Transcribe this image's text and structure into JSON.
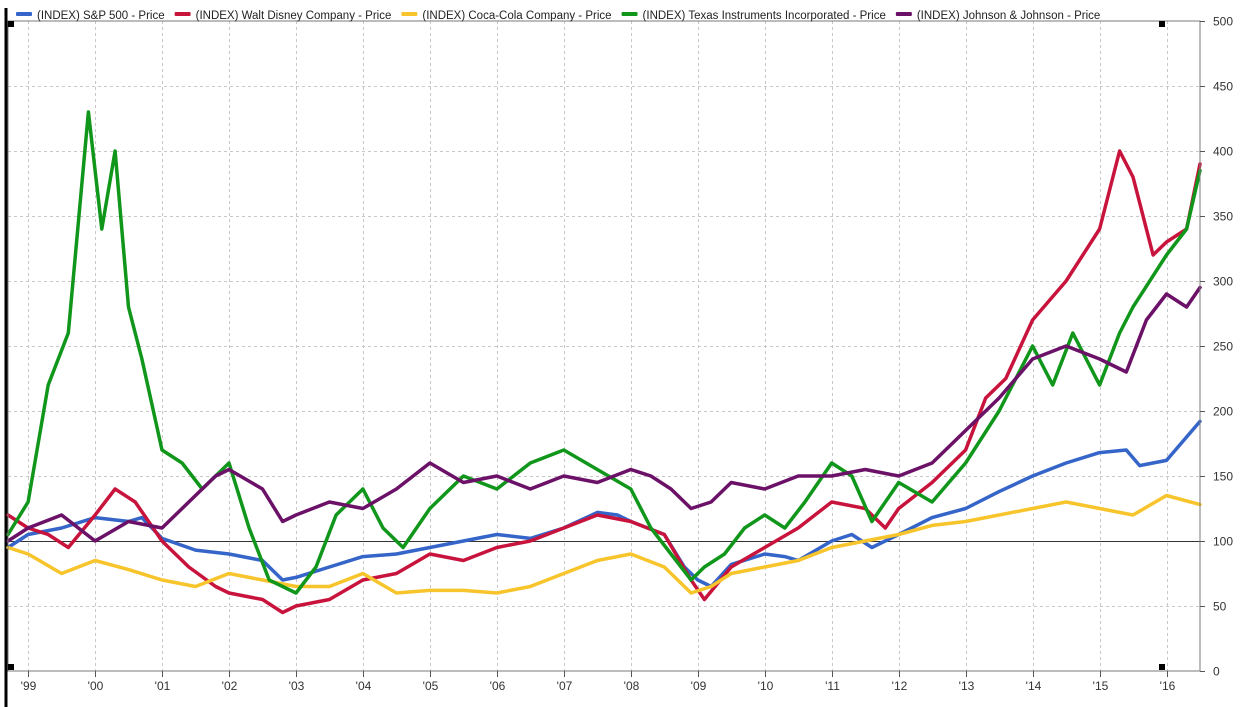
{
  "chart_data": {
    "type": "line",
    "title": "",
    "xlabel": "",
    "ylabel": "",
    "x_range": [
      1998.7,
      2016.5
    ],
    "x_ticks": [
      {
        "x": 1999,
        "label": "'99"
      },
      {
        "x": 2000,
        "label": "'00"
      },
      {
        "x": 2001,
        "label": "'01"
      },
      {
        "x": 2002,
        "label": "'02"
      },
      {
        "x": 2003,
        "label": "'03"
      },
      {
        "x": 2004,
        "label": "'04"
      },
      {
        "x": 2005,
        "label": "'05"
      },
      {
        "x": 2006,
        "label": "'06"
      },
      {
        "x": 2007,
        "label": "'07"
      },
      {
        "x": 2008,
        "label": "'08"
      },
      {
        "x": 2009,
        "label": "'09"
      },
      {
        "x": 2010,
        "label": "'10"
      },
      {
        "x": 2011,
        "label": "'11"
      },
      {
        "x": 2012,
        "label": "'12"
      },
      {
        "x": 2013,
        "label": "'13"
      },
      {
        "x": 2014,
        "label": "'14"
      },
      {
        "x": 2015,
        "label": "'15"
      },
      {
        "x": 2016,
        "label": "'16"
      }
    ],
    "ylim": [
      0,
      500
    ],
    "y_ticks": [
      0,
      50,
      100,
      150,
      200,
      250,
      300,
      350,
      400,
      450,
      500
    ],
    "y_axis_side": "right",
    "baseline": 100,
    "grid": true,
    "legend_placement": "top",
    "series": [
      {
        "name": "(INDEX) S&P 500 - Price",
        "color": "#3565c8",
        "x": [
          1998.7,
          1999.0,
          1999.5,
          2000.0,
          2000.5,
          2000.7,
          2001.0,
          2001.5,
          2002.0,
          2002.5,
          2002.8,
          2003.0,
          2003.5,
          2004.0,
          2004.5,
          2005.0,
          2005.5,
          2006.0,
          2006.5,
          2007.0,
          2007.5,
          2007.8,
          2008.0,
          2008.5,
          2008.8,
          2009.0,
          2009.2,
          2009.5,
          2010.0,
          2010.3,
          2010.5,
          2011.0,
          2011.3,
          2011.6,
          2012.0,
          2012.5,
          2013.0,
          2013.5,
          2014.0,
          2014.5,
          2015.0,
          2015.4,
          2015.6,
          2016.0,
          2016.3,
          2016.5
        ],
        "y": [
          95,
          105,
          110,
          118,
          115,
          118,
          102,
          93,
          90,
          85,
          70,
          72,
          80,
          88,
          90,
          95,
          100,
          105,
          102,
          110,
          122,
          120,
          115,
          105,
          80,
          70,
          65,
          82,
          90,
          88,
          85,
          100,
          105,
          95,
          105,
          118,
          125,
          138,
          150,
          160,
          168,
          170,
          158,
          162,
          180,
          192
        ]
      },
      {
        "name": "(INDEX) Walt Disney Company - Price",
        "color": "#c8143c",
        "x": [
          1998.7,
          1999.0,
          1999.3,
          1999.6,
          2000.0,
          2000.3,
          2000.6,
          2001.0,
          2001.4,
          2001.8,
          2002.0,
          2002.5,
          2002.8,
          2003.0,
          2003.5,
          2004.0,
          2004.5,
          2005.0,
          2005.5,
          2006.0,
          2006.5,
          2007.0,
          2007.5,
          2008.0,
          2008.5,
          2008.9,
          2009.1,
          2009.5,
          2010.0,
          2010.5,
          2011.0,
          2011.5,
          2011.8,
          2012.0,
          2012.5,
          2013.0,
          2013.3,
          2013.6,
          2014.0,
          2014.5,
          2015.0,
          2015.3,
          2015.5,
          2015.8,
          2016.0,
          2016.3,
          2016.5
        ],
        "y": [
          120,
          110,
          105,
          95,
          120,
          140,
          130,
          100,
          80,
          65,
          60,
          55,
          45,
          50,
          55,
          70,
          75,
          90,
          85,
          95,
          100,
          110,
          120,
          115,
          105,
          70,
          55,
          80,
          95,
          110,
          130,
          125,
          110,
          125,
          145,
          170,
          210,
          225,
          270,
          300,
          340,
          400,
          380,
          320,
          330,
          340,
          390
        ]
      },
      {
        "name": "(INDEX) Coca-Cola Company - Price",
        "color": "#f7c52b",
        "x": [
          1998.7,
          1999.0,
          1999.5,
          2000.0,
          2000.5,
          2001.0,
          2001.5,
          2002.0,
          2002.5,
          2003.0,
          2003.5,
          2004.0,
          2004.5,
          2005.0,
          2005.5,
          2006.0,
          2006.5,
          2007.0,
          2007.5,
          2008.0,
          2008.5,
          2008.9,
          2009.2,
          2009.5,
          2010.0,
          2010.5,
          2011.0,
          2011.5,
          2012.0,
          2012.5,
          2013.0,
          2013.5,
          2014.0,
          2014.5,
          2015.0,
          2015.5,
          2016.0,
          2016.5
        ],
        "y": [
          95,
          90,
          75,
          85,
          78,
          70,
          65,
          75,
          70,
          65,
          65,
          75,
          60,
          62,
          62,
          60,
          65,
          75,
          85,
          90,
          80,
          60,
          65,
          75,
          80,
          85,
          95,
          100,
          105,
          112,
          115,
          120,
          125,
          130,
          125,
          120,
          135,
          128
        ]
      },
      {
        "name": "(INDEX) Texas Instruments Incorporated - Price",
        "color": "#10961a",
        "x": [
          1998.7,
          1999.0,
          1999.3,
          1999.6,
          1999.9,
          2000.1,
          2000.3,
          2000.5,
          2000.7,
          2001.0,
          2001.3,
          2001.6,
          2002.0,
          2002.3,
          2002.6,
          2003.0,
          2003.3,
          2003.6,
          2004.0,
          2004.3,
          2004.6,
          2005.0,
          2005.5,
          2006.0,
          2006.5,
          2007.0,
          2007.5,
          2008.0,
          2008.3,
          2008.6,
          2008.9,
          2009.1,
          2009.4,
          2009.7,
          2010.0,
          2010.3,
          2010.6,
          2011.0,
          2011.3,
          2011.6,
          2012.0,
          2012.5,
          2013.0,
          2013.5,
          2014.0,
          2014.3,
          2014.6,
          2015.0,
          2015.3,
          2015.5,
          2016.0,
          2016.3,
          2016.5
        ],
        "y": [
          105,
          130,
          220,
          260,
          430,
          340,
          400,
          280,
          240,
          170,
          160,
          140,
          160,
          110,
          70,
          60,
          80,
          120,
          140,
          110,
          95,
          125,
          150,
          140,
          160,
          170,
          155,
          140,
          110,
          90,
          70,
          80,
          90,
          110,
          120,
          110,
          130,
          160,
          150,
          115,
          145,
          130,
          160,
          200,
          250,
          220,
          260,
          220,
          260,
          280,
          320,
          340,
          385
        ]
      },
      {
        "name": "(INDEX) Johnson & Johnson - Price",
        "color": "#6b1168",
        "x": [
          1998.7,
          1999.0,
          1999.5,
          2000.0,
          2000.5,
          2001.0,
          2001.5,
          2001.8,
          2002.0,
          2002.5,
          2002.8,
          2003.0,
          2003.5,
          2004.0,
          2004.5,
          2005.0,
          2005.5,
          2006.0,
          2006.5,
          2007.0,
          2007.5,
          2008.0,
          2008.3,
          2008.6,
          2008.9,
          2009.2,
          2009.5,
          2010.0,
          2010.5,
          2011.0,
          2011.5,
          2012.0,
          2012.5,
          2013.0,
          2013.5,
          2014.0,
          2014.5,
          2015.0,
          2015.4,
          2015.7,
          2016.0,
          2016.3,
          2016.5
        ],
        "y": [
          100,
          110,
          120,
          100,
          115,
          110,
          135,
          150,
          155,
          140,
          115,
          120,
          130,
          125,
          140,
          160,
          145,
          150,
          140,
          150,
          145,
          155,
          150,
          140,
          125,
          130,
          145,
          140,
          150,
          150,
          155,
          150,
          160,
          185,
          210,
          240,
          250,
          240,
          230,
          270,
          290,
          280,
          295
        ]
      }
    ]
  }
}
